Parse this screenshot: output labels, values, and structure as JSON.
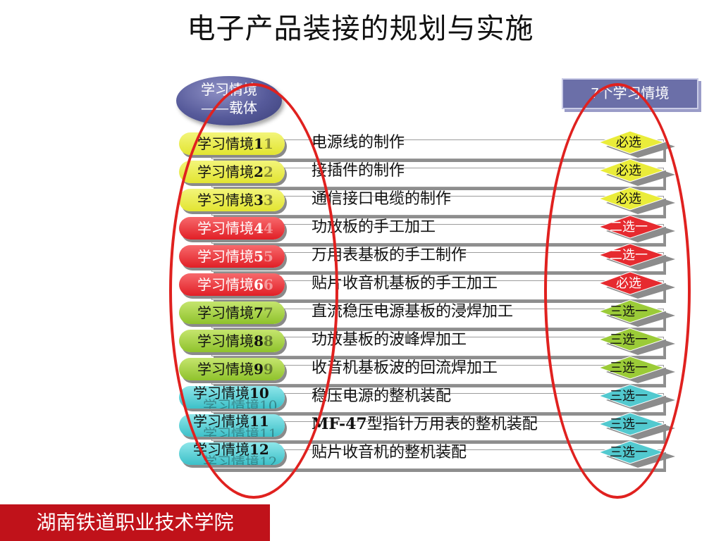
{
  "title": "电子产品装接的规划与实施",
  "bubble": {
    "line1": "学习情境",
    "line2": "——载体"
  },
  "context_box": "7个学习情境",
  "colors": {
    "yellow": "#e2e431",
    "red": "#e11f26",
    "green": "#8fc22c",
    "cyan": "#3cc0c8",
    "oval": "#e0211f",
    "footer": "#c0121a"
  },
  "rows": [
    {
      "label": "学习情境",
      "num": "1",
      "ghost": "1",
      "task": "电源线的制作",
      "tag": "必选",
      "color": "yellow"
    },
    {
      "label": "学习情境",
      "num": "2",
      "ghost": "2",
      "task": "接插件的制作",
      "tag": "必选",
      "color": "yellow"
    },
    {
      "label": "学习情境",
      "num": "3",
      "ghost": "3",
      "task": "通信接口电缆的制作",
      "tag": "必选",
      "color": "yellow"
    },
    {
      "label": "学习情境",
      "num": "4",
      "ghost": "4",
      "task": "功放板的手工加工",
      "tag": "二选一",
      "color": "red"
    },
    {
      "label": "学习情境",
      "num": "5",
      "ghost": "5",
      "task": "万用表基板的手工制作",
      "tag": "二选一",
      "color": "red"
    },
    {
      "label": "学习情境",
      "num": "6",
      "ghost": "6",
      "task": "贴片收音机基板的手工加工",
      "tag": "必选",
      "color": "red"
    },
    {
      "label": "学习情境",
      "num": "7",
      "ghost": "7",
      "task": "直流稳压电源基板的浸焊加工",
      "tag": "三选一",
      "color": "green"
    },
    {
      "label": "学习情境",
      "num": "8",
      "ghost": "8",
      "task": "功放基板的波峰焊加工",
      "tag": "三选一",
      "color": "green"
    },
    {
      "label": "学习情境",
      "num": "9",
      "ghost": "9",
      "task": "收音机基板波的回流焊加工",
      "tag": "三选一",
      "color": "green"
    },
    {
      "label": "学习情境",
      "num": "10",
      "ghost": "学习情境10",
      "task": "稳压电源的整机装配",
      "tag": "三选一",
      "color": "cyan"
    },
    {
      "label": "学习情境",
      "num": "11",
      "ghost": "学习情境11",
      "task_prefix": "MF-47",
      "task": "型指针万用表的整机装配",
      "tag": "三选一",
      "color": "cyan"
    },
    {
      "label": "学习情境",
      "num": "12",
      "ghost": "学习情境12",
      "task": "贴片收音机的整机装配",
      "tag": "三选一",
      "color": "cyan"
    }
  ],
  "footer": "湖南铁道职业技术学院"
}
